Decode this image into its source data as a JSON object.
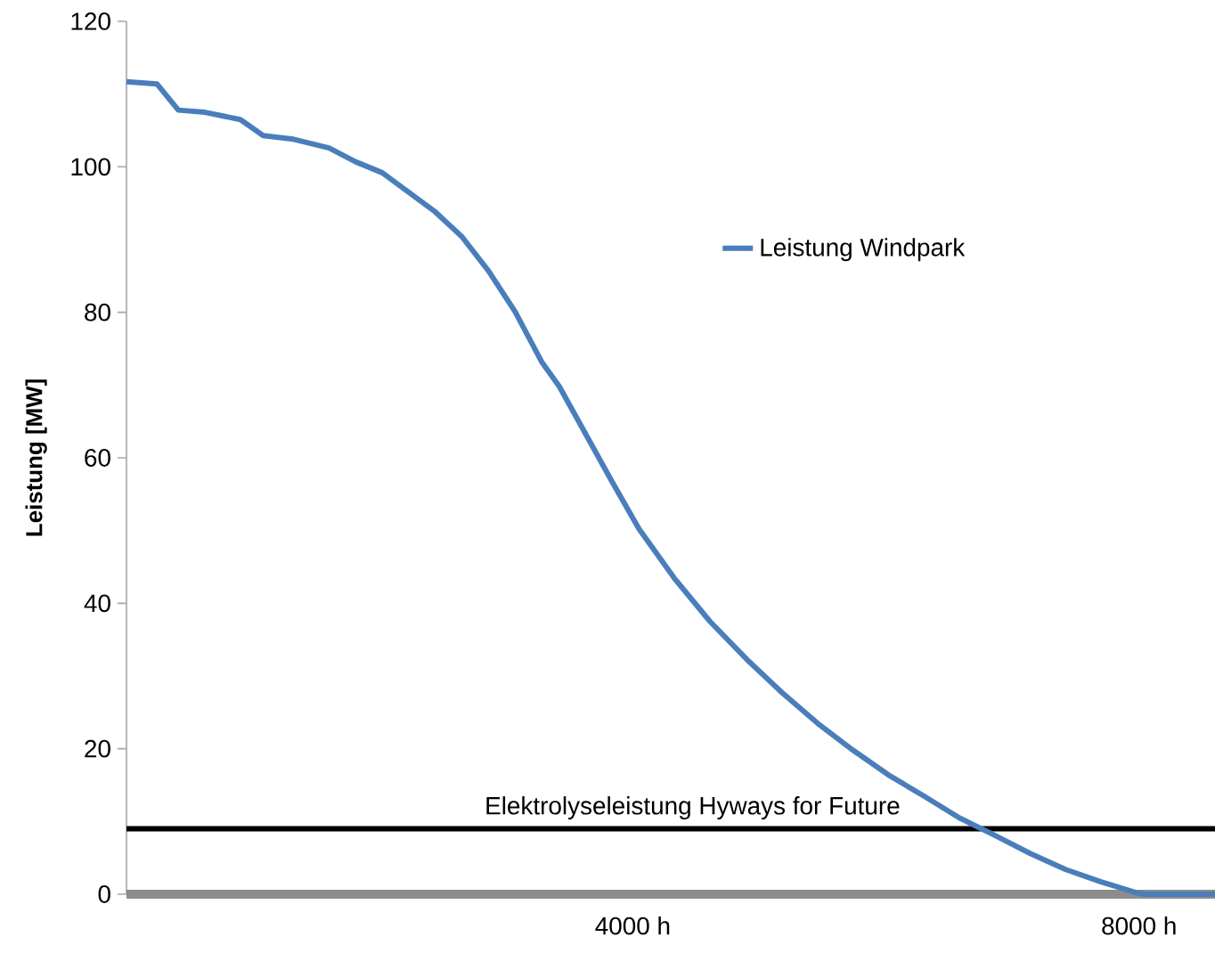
{
  "chart_data": {
    "type": "line",
    "ylabel": "Leistung [MW]",
    "xlim": [
      0,
      8600
    ],
    "ylim": [
      0,
      120
    ],
    "xticks": [
      {
        "value": 4000,
        "label": "4000 h"
      },
      {
        "value": 8000,
        "label": "8000 h"
      }
    ],
    "yticks": [
      0,
      20,
      40,
      60,
      80,
      100,
      120
    ],
    "series": [
      {
        "name": "Leistung Windpark",
        "color": "#4a7ebb",
        "x": [
          0,
          240,
          410,
          620,
          900,
          1080,
          1320,
          1600,
          1810,
          2020,
          2230,
          2440,
          2650,
          2860,
          3070,
          3280,
          3420,
          3630,
          3840,
          4050,
          4330,
          4610,
          4900,
          5180,
          5460,
          5740,
          6020,
          6300,
          6580,
          6860,
          7140,
          7420,
          7700,
          7980,
          8050,
          8600
        ],
        "values": [
          111.7,
          111.4,
          107.8,
          107.5,
          106.5,
          104.3,
          103.8,
          102.6,
          100.7,
          99.2,
          96.5,
          93.8,
          90.4,
          85.7,
          80.1,
          73.2,
          69.8,
          63.2,
          56.6,
          50.2,
          43.4,
          37.5,
          32.3,
          27.7,
          23.5,
          19.8,
          16.4,
          13.5,
          10.5,
          8.1,
          5.6,
          3.4,
          1.7,
          0.2,
          0,
          0
        ]
      }
    ],
    "ref_lines": [
      {
        "axis": "y",
        "value": 9,
        "label": "Elektrolyseleistung Hyways for Future",
        "color": "#000000"
      }
    ],
    "legend": "right",
    "grid": false,
    "marker": "none",
    "line_style": "solid"
  }
}
